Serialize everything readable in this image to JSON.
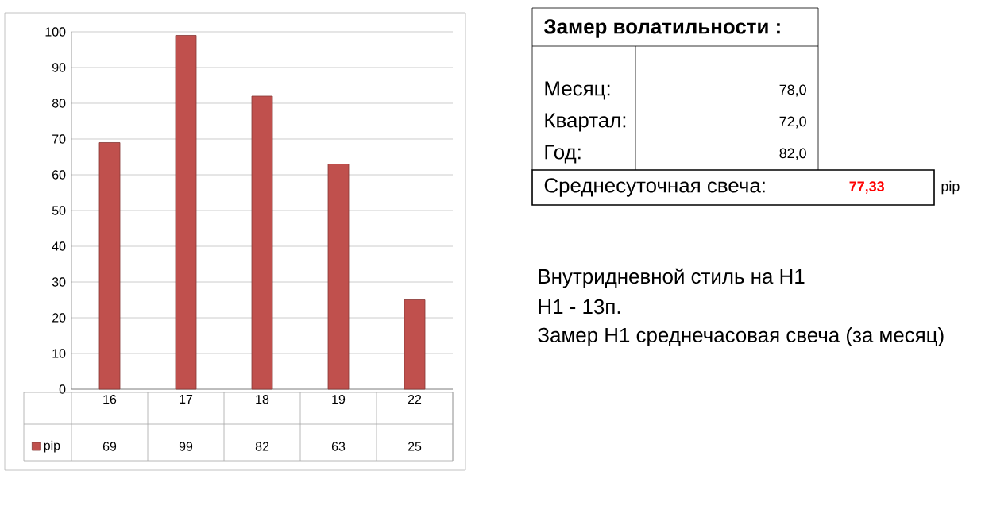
{
  "chart_data": {
    "type": "bar",
    "categories": [
      "16",
      "17",
      "18",
      "19",
      "22"
    ],
    "series": [
      {
        "name": "pip",
        "color": "#c0504d",
        "values": [
          69,
          99,
          82,
          63,
          25
        ]
      }
    ],
    "ylim": [
      0,
      100
    ],
    "yticks": [
      0,
      10,
      20,
      30,
      40,
      50,
      60,
      70,
      80,
      90,
      100
    ],
    "grid": "y",
    "legend": "bottom left",
    "data_labels": true,
    "annotations": [
      "Замер  волатильности  :",
      "Месяц:",
      "78,0",
      "Квартал:",
      "72,0",
      "Год:",
      "82,0",
      "Среднесуточная свеча:",
      "77,33",
      "pip",
      "Внутридневной стиль на H1",
      "H1 - 13п.",
      "Замер H1 среднечасовая свеча (за месяц)"
    ]
  }
}
